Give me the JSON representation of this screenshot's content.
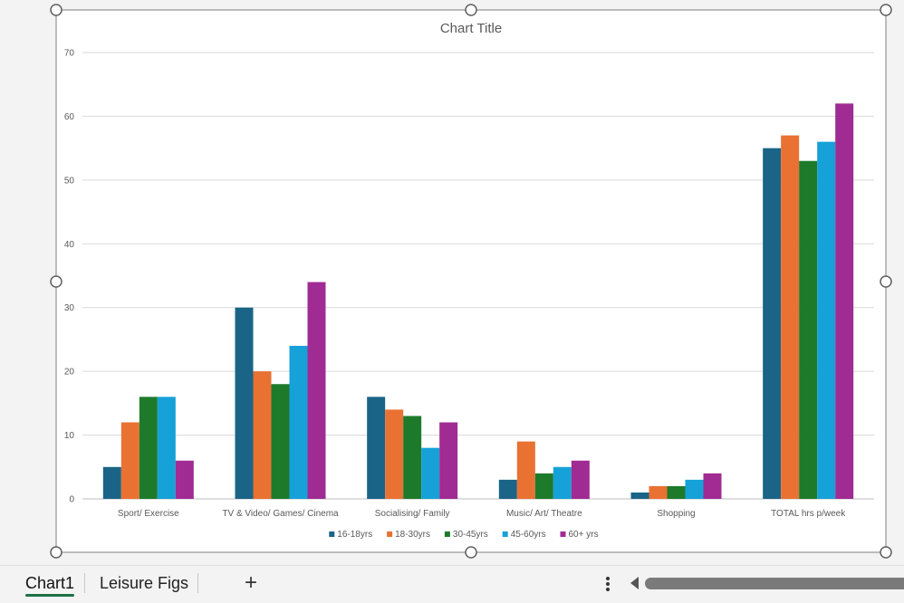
{
  "sheet_tabs": [
    {
      "label": "Chart1",
      "active": true
    },
    {
      "label": "Leisure Figs",
      "active": false
    }
  ],
  "add_sheet_label": "+",
  "colors": {
    "series": [
      "#1a6487",
      "#e97132",
      "#1e7a2b",
      "#16a1d8",
      "#a02b93"
    ],
    "gridline": "#d9d9d9",
    "axis_text": "#595959",
    "title_text": "#595959",
    "handle": "#606060"
  },
  "chart_data": {
    "type": "bar",
    "title": "Chart Title",
    "categories": [
      "Sport/ Exercise",
      "TV & Video/ Games/ Cinema",
      "Socialising/ Family",
      "Music/ Art/ Theatre",
      "Shopping",
      "TOTAL hrs p/week"
    ],
    "series": [
      {
        "name": "16-18yrs",
        "values": [
          5,
          30,
          16,
          3,
          1,
          55
        ]
      },
      {
        "name": "18-30yrs",
        "values": [
          12,
          20,
          14,
          9,
          2,
          57
        ]
      },
      {
        "name": "30-45yrs",
        "values": [
          16,
          18,
          13,
          4,
          2,
          53
        ]
      },
      {
        "name": "45-60yrs",
        "values": [
          16,
          24,
          8,
          5,
          3,
          56
        ]
      },
      {
        "name": "60+ yrs",
        "values": [
          6,
          34,
          12,
          6,
          4,
          62
        ]
      }
    ],
    "yticks": [
      0,
      10,
      20,
      30,
      40,
      50,
      60,
      70
    ],
    "ylim": [
      0,
      70
    ],
    "grid": true,
    "legend_position": "bottom"
  }
}
